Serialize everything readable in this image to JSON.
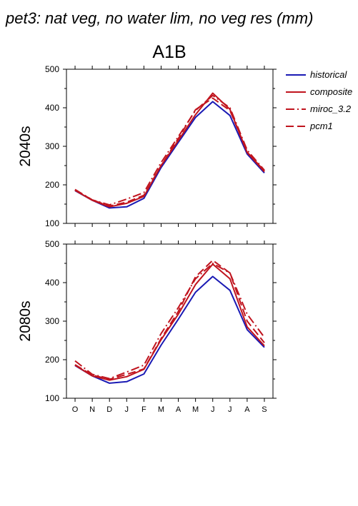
{
  "figure": {
    "main_title": "pet3: nat veg, no water lim, no veg res (mm)",
    "scenario": "A1B"
  },
  "legend": {
    "items": [
      {
        "label": "historical",
        "color": "#1a1ab4",
        "dash": "solid"
      },
      {
        "label": "composite",
        "color": "#c0141e",
        "dash": "solid"
      },
      {
        "label": "miroc_3.2",
        "color": "#c0141e",
        "dash": "dashdot"
      },
      {
        "label": "pcm1",
        "color": "#c0141e",
        "dash": "dashed"
      }
    ]
  },
  "chart_data": [
    {
      "type": "line",
      "row_label": "2040s",
      "categories": [
        "O",
        "N",
        "D",
        "J",
        "F",
        "M",
        "A",
        "M",
        "J",
        "J",
        "A",
        "S"
      ],
      "ylim": [
        100,
        500
      ],
      "yticks": [
        100,
        200,
        300,
        400,
        500
      ],
      "series": [
        {
          "name": "historical",
          "values": [
            185,
            160,
            140,
            143,
            165,
            245,
            310,
            375,
            416,
            380,
            280,
            231
          ]
        },
        {
          "name": "composite",
          "values": [
            186,
            160,
            143,
            152,
            170,
            250,
            315,
            382,
            438,
            396,
            284,
            234
          ]
        },
        {
          "name": "miroc_3.2",
          "values": [
            188,
            161,
            148,
            163,
            180,
            258,
            325,
            393,
            432,
            400,
            290,
            238
          ]
        },
        {
          "name": "pcm1",
          "values": [
            187,
            161,
            145,
            155,
            173,
            250,
            320,
            395,
            425,
            393,
            285,
            236
          ]
        }
      ]
    },
    {
      "type": "line",
      "row_label": "2080s",
      "categories": [
        "O",
        "N",
        "D",
        "J",
        "F",
        "M",
        "A",
        "M",
        "J",
        "J",
        "A",
        "S"
      ],
      "ylim": [
        100,
        500
      ],
      "yticks": [
        100,
        200,
        300,
        400,
        500
      ],
      "series": [
        {
          "name": "historical",
          "values": [
            185,
            158,
            139,
            143,
            163,
            238,
            305,
            375,
            416,
            380,
            278,
            232
          ]
        },
        {
          "name": "composite",
          "values": [
            186,
            158,
            147,
            156,
            175,
            252,
            318,
            395,
            448,
            410,
            285,
            236
          ]
        },
        {
          "name": "miroc_3.2",
          "values": [
            197,
            162,
            151,
            168,
            186,
            268,
            335,
            410,
            450,
            425,
            318,
            258
          ]
        },
        {
          "name": "pcm1",
          "values": [
            187,
            160,
            149,
            162,
            176,
            255,
            325,
            415,
            458,
            425,
            300,
            244
          ]
        }
      ]
    }
  ]
}
